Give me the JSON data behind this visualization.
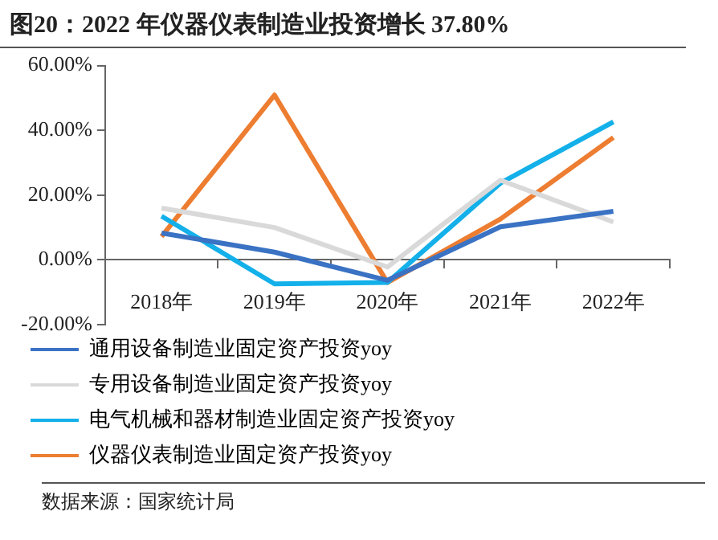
{
  "chart_data": {
    "type": "line",
    "title": "图20：2022 年仪器仪表制造业投资增长 37.80%",
    "categories": [
      "2018年",
      "2019年",
      "2020年",
      "2021年",
      "2022年"
    ],
    "series": [
      {
        "name": "通用设备制造业固定资产投资yoy",
        "color": "#3a72c4",
        "values": [
          8.3,
          2.4,
          -6.3,
          10.2,
          15
        ]
      },
      {
        "name": "专用设备制造业固定资产投资yoy",
        "color": "#d9d9d9",
        "values": [
          16,
          10,
          -2.2,
          24.6,
          11.7
        ]
      },
      {
        "name": "电气机械和器材制造业固定资产投资yoy",
        "color": "#13b0ea",
        "values": [
          13.5,
          -7.4,
          -7,
          23.7,
          42.6
        ]
      },
      {
        "name": "仪器仪表制造业固定资产投资yoy",
        "color": "#ed7d31",
        "values": [
          7.2,
          50.9,
          -7,
          12.6,
          37.8
        ]
      }
    ],
    "ylim": [
      -20,
      60
    ],
    "yticks": [
      {
        "value": -20,
        "label": "-20.00%"
      },
      {
        "value": 0,
        "label": "0.00%"
      },
      {
        "value": 20,
        "label": "20.00%"
      },
      {
        "value": 40,
        "label": "40.00%"
      },
      {
        "value": 60,
        "label": "60.00%"
      }
    ],
    "grid": false,
    "legend": "bottom",
    "marker": "none",
    "line_style": "solid",
    "annotations": [
      "数据来源：国家统计局"
    ]
  }
}
